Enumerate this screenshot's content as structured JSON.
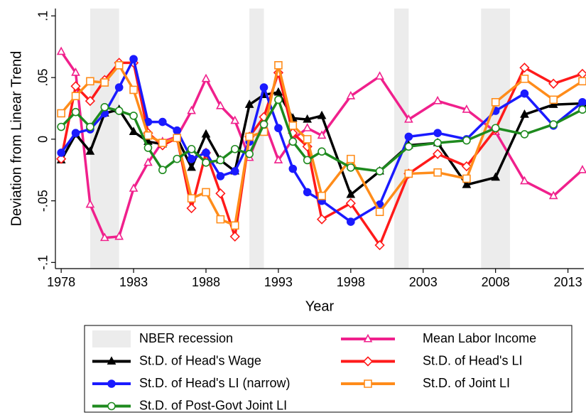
{
  "chart_data": {
    "type": "line",
    "xlabel": "Year",
    "ylabel": "Deviation from Linear Trend",
    "x": [
      1978,
      1979,
      1980,
      1981,
      1982,
      1983,
      1984,
      1985,
      1986,
      1987,
      1988,
      1989,
      1990,
      1991,
      1992,
      1993,
      1994,
      1995,
      1996,
      1998,
      2000,
      2002,
      2004,
      2006,
      2008,
      2010,
      2012,
      2014
    ],
    "xlim": [
      1977.6,
      2014.1
    ],
    "xticks": [
      1978,
      1983,
      1988,
      1993,
      1998,
      2003,
      2008,
      2013
    ],
    "ylim": [
      -0.105,
      0.106
    ],
    "yticks": [
      {
        "value": -0.1,
        "label": "-.1"
      },
      {
        "value": -0.05,
        "label": "-.05"
      },
      0,
      {
        "value": 0.05,
        "label": ".05"
      },
      {
        "value": 0.1,
        "label": ".1"
      }
    ],
    "grid": false,
    "recessions": {
      "name": "NBER recession",
      "color": "#ececec",
      "spans": [
        [
          1980,
          1982
        ],
        [
          1991,
          1992
        ],
        [
          2001,
          2002
        ],
        [
          2007,
          2009
        ]
      ]
    },
    "series": [
      {
        "name": "Mean Labor Income",
        "color": "#f0208c",
        "marker": "triangle",
        "filled": false,
        "values": [
          0.071,
          0.054,
          -0.053,
          -0.08,
          -0.079,
          -0.04,
          -0.019,
          -0.002,
          0.002,
          0.023,
          0.049,
          0.027,
          0.015,
          -0.015,
          0.015,
          -0.017,
          0.0,
          0.009,
          0.003,
          0.035,
          0.051,
          0.016,
          0.031,
          0.024,
          0.006,
          -0.034,
          -0.046,
          -0.025
        ]
      },
      {
        "name": "St.D. of Head's Wage",
        "color": "#000000",
        "marker": "triangle",
        "filled": true,
        "values": [
          -0.017,
          0.004,
          -0.01,
          0.021,
          0.024,
          0.006,
          -0.002,
          -0.004,
          0.001,
          -0.023,
          0.004,
          -0.017,
          -0.026,
          0.028,
          0.036,
          0.038,
          0.017,
          0.016,
          0.019,
          -0.045,
          -0.026,
          -0.005,
          -0.003,
          -0.037,
          -0.031,
          0.02,
          0.028,
          0.029
        ]
      },
      {
        "name": "St.D. of Head's LI",
        "color": "#ff1a1a",
        "marker": "diamond",
        "filled": false,
        "values": [
          -0.016,
          0.043,
          0.031,
          0.048,
          0.062,
          0.062,
          0.005,
          -0.005,
          0.001,
          -0.056,
          -0.011,
          -0.044,
          -0.079,
          0.002,
          0.018,
          0.054,
          0.005,
          -0.006,
          -0.065,
          -0.052,
          -0.086,
          -0.028,
          -0.012,
          -0.022,
          0.008,
          0.058,
          0.045,
          0.053
        ]
      },
      {
        "name": "St.D. of Head's LI (narrow)",
        "color": "#1a1aff",
        "marker": "circle",
        "filled": true,
        "values": [
          -0.011,
          0.005,
          0.008,
          0.021,
          0.042,
          0.065,
          0.014,
          0.014,
          0.007,
          -0.016,
          -0.011,
          -0.03,
          -0.026,
          -0.002,
          0.042,
          0.009,
          -0.024,
          -0.043,
          -0.05,
          -0.067,
          -0.053,
          0.002,
          0.005,
          0.0,
          0.023,
          0.037,
          0.011,
          0.03
        ]
      },
      {
        "name": "St.D. of Joint LI",
        "color": "#ff8c1a",
        "marker": "square",
        "filled": false,
        "values": [
          0.021,
          0.035,
          0.047,
          0.046,
          0.06,
          0.04,
          0.003,
          -0.003,
          0.001,
          -0.048,
          -0.043,
          -0.065,
          -0.07,
          0.002,
          0.006,
          0.06,
          0.011,
          0.0,
          -0.046,
          -0.016,
          -0.059,
          -0.028,
          -0.027,
          -0.032,
          0.03,
          0.049,
          0.032,
          0.047
        ]
      },
      {
        "name": "St.D. of Post-Govt Joint LI",
        "color": "#1e8a1e",
        "marker": "circle",
        "filled": false,
        "values": [
          0.01,
          0.022,
          0.01,
          0.026,
          0.023,
          0.019,
          -0.007,
          -0.025,
          -0.016,
          -0.008,
          -0.019,
          -0.017,
          -0.008,
          -0.012,
          0.012,
          0.032,
          -0.002,
          -0.017,
          -0.01,
          -0.023,
          -0.026,
          -0.006,
          -0.003,
          -0.001,
          0.009,
          0.004,
          0.012,
          0.024
        ]
      }
    ]
  }
}
